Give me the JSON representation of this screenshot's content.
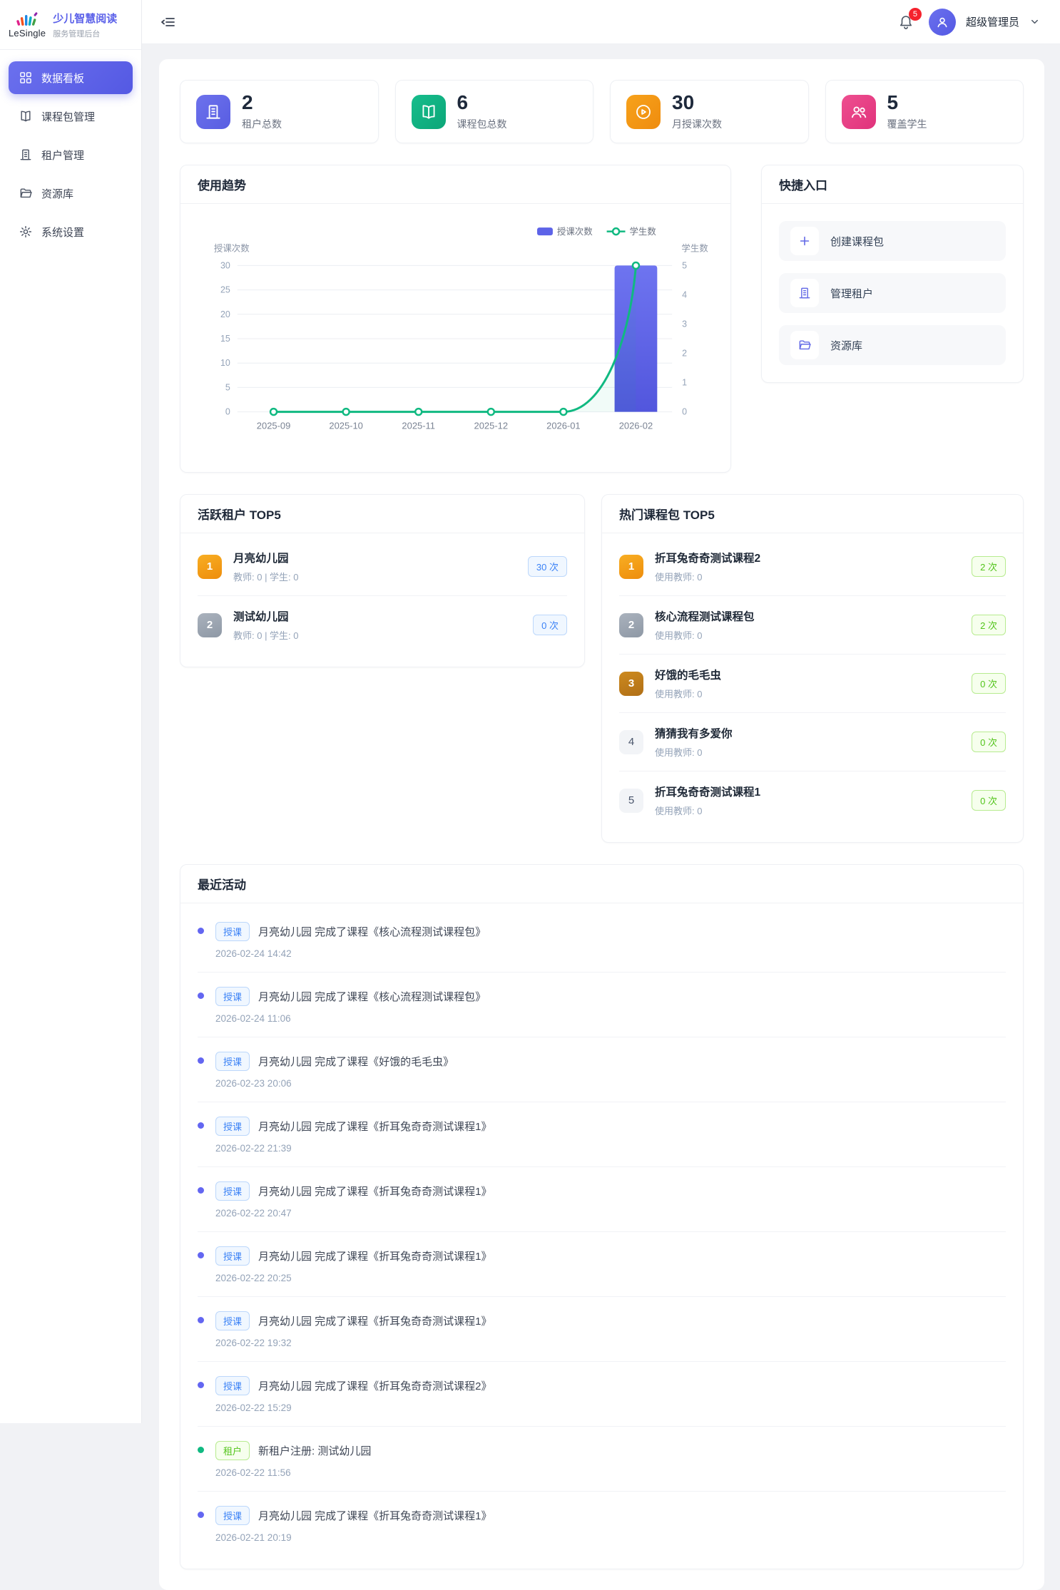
{
  "brand": {
    "name": "LeSingle",
    "title": "少儿智慧阅读",
    "subtitle": "服务管理后台"
  },
  "sidebar": {
    "items": [
      {
        "label": "数据看板",
        "icon": "dashboard-grid",
        "active": true
      },
      {
        "label": "课程包管理",
        "icon": "book",
        "active": false
      },
      {
        "label": "租户管理",
        "icon": "building",
        "active": false
      },
      {
        "label": "资源库",
        "icon": "folder",
        "active": false
      },
      {
        "label": "系统设置",
        "icon": "gear",
        "active": false
      }
    ]
  },
  "header": {
    "notification_count": "5",
    "user_name": "超级管理员"
  },
  "stats": [
    {
      "value": "2",
      "label": "租户总数",
      "icon": "building",
      "color": "#5d63e8"
    },
    {
      "value": "6",
      "label": "课程包总数",
      "icon": "open-book",
      "color": "#10b981"
    },
    {
      "value": "30",
      "label": "月授课次数",
      "icon": "play-circle",
      "color": "#f59e0b"
    },
    {
      "value": "5",
      "label": "覆盖学生",
      "icon": "users",
      "color": "#ec4899"
    }
  ],
  "trend": {
    "title": "使用趋势"
  },
  "chart_data": {
    "type": "bar",
    "categories": [
      "2025-09",
      "2025-10",
      "2025-11",
      "2025-12",
      "2026-01",
      "2026-02"
    ],
    "series": [
      {
        "name": "授课次数",
        "type": "bar",
        "axis": "left",
        "values": [
          0,
          0,
          0,
          0,
          0,
          30
        ],
        "color": "#5d63e8"
      },
      {
        "name": "学生数",
        "type": "line",
        "axis": "right",
        "values": [
          0,
          0,
          0,
          0,
          0,
          5
        ],
        "color": "#10b981"
      }
    ],
    "left_axis": {
      "title": "授课次数",
      "min": 0,
      "max": 30,
      "ticks": [
        0,
        5,
        10,
        15,
        20,
        25,
        30
      ]
    },
    "right_axis": {
      "title": "学生数",
      "min": 0,
      "max": 5,
      "ticks": [
        0,
        1,
        2,
        3,
        4,
        5
      ]
    },
    "legend_position": "top-right",
    "grid": true
  },
  "quick_links": {
    "title": "快捷入口",
    "items": [
      {
        "label": "创建课程包",
        "icon": "plus"
      },
      {
        "label": "管理租户",
        "icon": "building"
      },
      {
        "label": "资源库",
        "icon": "folder"
      }
    ]
  },
  "active_tenants": {
    "title": "活跃租户 TOP5",
    "items": [
      {
        "rank": "1",
        "name": "月亮幼儿园",
        "meta": "教师: 0 | 学生: 0",
        "count": "30 次"
      },
      {
        "rank": "2",
        "name": "测试幼儿园",
        "meta": "教师: 0 | 学生: 0",
        "count": "0 次"
      }
    ]
  },
  "hot_packages": {
    "title": "热门课程包 TOP5",
    "items": [
      {
        "rank": "1",
        "name": "折耳兔奇奇测试课程2",
        "meta": "使用教师: 0",
        "count": "2 次"
      },
      {
        "rank": "2",
        "name": "核心流程测试课程包",
        "meta": "使用教师: 0",
        "count": "2 次"
      },
      {
        "rank": "3",
        "name": "好饿的毛毛虫",
        "meta": "使用教师: 0",
        "count": "0 次"
      },
      {
        "rank": "4",
        "name": "猜猜我有多爱你",
        "meta": "使用教师: 0",
        "count": "0 次"
      },
      {
        "rank": "5",
        "name": "折耳兔奇奇测试课程1",
        "meta": "使用教师: 0",
        "count": "0 次"
      }
    ]
  },
  "activities": {
    "title": "最近活动",
    "items": [
      {
        "type": "lesson",
        "tag": "授课",
        "text": "月亮幼儿园 完成了课程《核心流程测试课程包》",
        "time": "2026-02-24 14:42"
      },
      {
        "type": "lesson",
        "tag": "授课",
        "text": "月亮幼儿园 完成了课程《核心流程测试课程包》",
        "time": "2026-02-24 11:06"
      },
      {
        "type": "lesson",
        "tag": "授课",
        "text": "月亮幼儿园 完成了课程《好饿的毛毛虫》",
        "time": "2026-02-23 20:06"
      },
      {
        "type": "lesson",
        "tag": "授课",
        "text": "月亮幼儿园 完成了课程《折耳兔奇奇测试课程1》",
        "time": "2026-02-22 21:39"
      },
      {
        "type": "lesson",
        "tag": "授课",
        "text": "月亮幼儿园 完成了课程《折耳兔奇奇测试课程1》",
        "time": "2026-02-22 20:47"
      },
      {
        "type": "lesson",
        "tag": "授课",
        "text": "月亮幼儿园 完成了课程《折耳兔奇奇测试课程1》",
        "time": "2026-02-22 20:25"
      },
      {
        "type": "lesson",
        "tag": "授课",
        "text": "月亮幼儿园 完成了课程《折耳兔奇奇测试课程1》",
        "time": "2026-02-22 19:32"
      },
      {
        "type": "lesson",
        "tag": "授课",
        "text": "月亮幼儿园 完成了课程《折耳兔奇奇测试课程2》",
        "time": "2026-02-22 15:29"
      },
      {
        "type": "tenant",
        "tag": "租户",
        "text": "新租户注册: 测试幼儿园",
        "time": "2026-02-22 11:56"
      },
      {
        "type": "lesson",
        "tag": "授课",
        "text": "月亮幼儿园 完成了课程《折耳兔奇奇测试课程1》",
        "time": "2026-02-21 20:19"
      }
    ]
  },
  "colors": {
    "accent": "#5b61e9",
    "bar": "#5d63e8",
    "line": "#10b981",
    "tag_blue": "#3b82f6",
    "tag_green": "#52c41a",
    "badge_red": "#f5222d",
    "rank_gold": "#f0950f",
    "rank_silver": "#9aa3b0",
    "rank_bronze": "#b8771a"
  }
}
